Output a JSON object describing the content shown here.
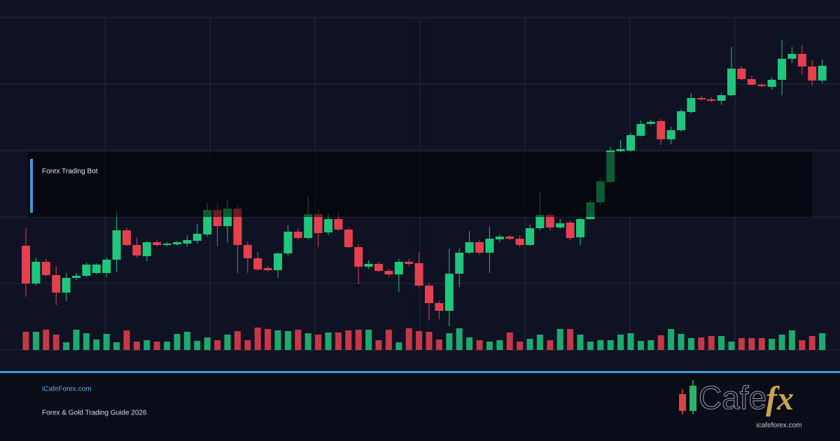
{
  "chart_data": {
    "type": "candlestick",
    "title": "Forex Trading Bot",
    "ylim": [
      0,
      475
    ],
    "vlim": [
      0,
      35
    ],
    "up_color": "#1ec77b",
    "down_color": "#e5404e",
    "open": [
      149,
      95,
      126,
      107,
      82,
      103,
      106,
      110,
      110,
      129,
      171,
      150,
      134,
      154,
      150,
      151,
      152,
      156,
      165,
      200,
      177,
      202,
      150,
      131,
      117,
      114,
      138,
      169,
      160,
      194,
      168,
      187,
      172,
      147,
      119,
      123,
      113,
      108,
      126,
      124,
      92,
      67,
      56,
      109,
      139,
      154,
      139,
      158,
      162,
      159,
      150,
      174,
      193,
      175,
      182,
      161,
      187,
      211,
      240,
      284,
      285,
      306,
      323,
      327,
      301,
      314,
      340,
      360,
      358,
      356,
      364,
      402,
      387,
      379,
      376,
      386,
      416,
      423,
      405,
      385
    ],
    "high": [
      174,
      132,
      130,
      120,
      110,
      110,
      125,
      124,
      132,
      198,
      175,
      160,
      156,
      157,
      154,
      156,
      164,
      180,
      210,
      210,
      215,
      207,
      155,
      140,
      120,
      140,
      178,
      174,
      219,
      200,
      195,
      197,
      175,
      151,
      128,
      126,
      116,
      130,
      130,
      140,
      95,
      70,
      145,
      145,
      170,
      157,
      177,
      165,
      164,
      164,
      179,
      226,
      197,
      187,
      185,
      189,
      215,
      245,
      290,
      300,
      310,
      328,
      329,
      330,
      319,
      344,
      367,
      363,
      361,
      367,
      433,
      405,
      392,
      381,
      390,
      443,
      433,
      436,
      414,
      415
    ],
    "low": [
      76,
      92,
      105,
      64,
      70,
      100,
      104,
      108,
      104,
      112,
      148,
      132,
      127,
      148,
      148,
      149,
      148,
      152,
      162,
      148,
      154,
      110,
      110,
      113,
      112,
      103,
      135,
      158,
      158,
      147,
      164,
      170,
      145,
      94,
      116,
      111,
      105,
      83,
      120,
      90,
      42,
      44,
      34,
      90,
      137,
      136,
      110,
      154,
      157,
      147,
      148,
      171,
      171,
      173,
      157,
      149,
      186,
      208,
      238,
      282,
      283,
      305,
      321,
      293,
      294,
      312,
      338,
      356,
      354,
      350,
      362,
      385,
      378,
      376,
      372,
      364,
      410,
      393,
      377,
      381
    ],
    "close": [
      95,
      126,
      107,
      82,
      103,
      106,
      122,
      122,
      129,
      171,
      150,
      135,
      154,
      150,
      152,
      154,
      157,
      166,
      200,
      177,
      202,
      150,
      131,
      115,
      114,
      138,
      169,
      160,
      194,
      167,
      187,
      172,
      147,
      119,
      123,
      113,
      108,
      126,
      123,
      92,
      67,
      56,
      109,
      139,
      154,
      139,
      159,
      162,
      159,
      150,
      174,
      193,
      175,
      181,
      160,
      187,
      211,
      241,
      285,
      287,
      307,
      323,
      326,
      301,
      314,
      341,
      360,
      358,
      356,
      364,
      402,
      387,
      379,
      377,
      386,
      416,
      423,
      405,
      385,
      406
    ],
    "volume": [
      26,
      26,
      29,
      22,
      11,
      29,
      24,
      15,
      23,
      11,
      28,
      12,
      14,
      12,
      12,
      23,
      26,
      13,
      18,
      14,
      22,
      27,
      14,
      32,
      30,
      28,
      27,
      29,
      24,
      22,
      25,
      25,
      28,
      29,
      29,
      14,
      29,
      11,
      31,
      27,
      26,
      15,
      24,
      31,
      18,
      14,
      12,
      14,
      25,
      12,
      16,
      22,
      14,
      30,
      30,
      22,
      12,
      14,
      14,
      22,
      24,
      13,
      14,
      21,
      30,
      23,
      17,
      18,
      20,
      20,
      12,
      17,
      17,
      17,
      16,
      22,
      28,
      14,
      20,
      24
    ]
  },
  "footer": {
    "site": "iCafeForex.com",
    "subtitle": "Forex & Gold Trading Guide 2026"
  },
  "logo": {
    "text": "Cafe",
    "accent": "fx",
    "caption": "icafeforex.com"
  }
}
